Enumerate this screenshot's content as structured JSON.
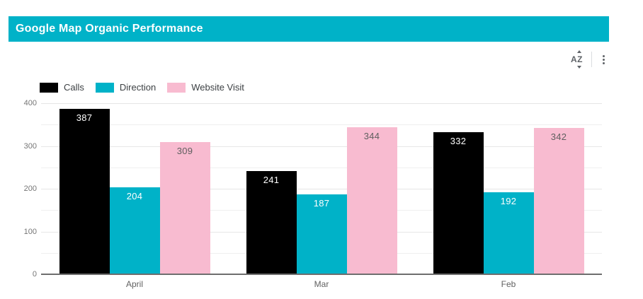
{
  "header": {
    "title": "Google Map Organic Performance",
    "accent_color": "#00b2c8"
  },
  "toolbar": {
    "sort_icon_text": "AZ",
    "icons": [
      "sort-az-icon",
      "kebab-menu-icon"
    ]
  },
  "chart_data": {
    "type": "bar",
    "categories": [
      "April",
      "Mar",
      "Feb"
    ],
    "series": [
      {
        "name": "Calls",
        "color": "#000000",
        "label_color": "#ffffff",
        "values": [
          387,
          241,
          332
        ]
      },
      {
        "name": "Direction",
        "color": "#00b2c8",
        "label_color": "#ffffff",
        "values": [
          204,
          187,
          192
        ]
      },
      {
        "name": "Website Visit",
        "color": "#f8bbd0",
        "label_color": "#5f5f5f",
        "values": [
          309,
          344,
          342
        ]
      }
    ],
    "ylim": [
      0,
      400
    ],
    "yticks": [
      0,
      100,
      200,
      300,
      400
    ],
    "grid": "horizontal-every-50",
    "legend_position": "top-left",
    "bar_labels": "inside-top"
  }
}
